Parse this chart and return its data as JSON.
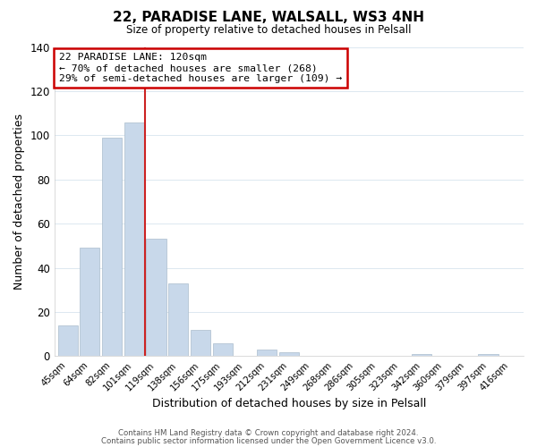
{
  "title": "22, PARADISE LANE, WALSALL, WS3 4NH",
  "subtitle": "Size of property relative to detached houses in Pelsall",
  "xlabel": "Distribution of detached houses by size in Pelsall",
  "ylabel": "Number of detached properties",
  "bar_labels": [
    "45sqm",
    "64sqm",
    "82sqm",
    "101sqm",
    "119sqm",
    "138sqm",
    "156sqm",
    "175sqm",
    "193sqm",
    "212sqm",
    "231sqm",
    "249sqm",
    "268sqm",
    "286sqm",
    "305sqm",
    "323sqm",
    "342sqm",
    "360sqm",
    "379sqm",
    "397sqm",
    "416sqm"
  ],
  "bar_values": [
    14,
    49,
    99,
    106,
    53,
    33,
    12,
    6,
    0,
    3,
    2,
    0,
    0,
    0,
    0,
    0,
    1,
    0,
    0,
    1,
    0
  ],
  "bar_color": "#c8d8ea",
  "bar_edge_color": "#aabdcc",
  "vline_index": 3.5,
  "vline_color": "#cc2222",
  "ylim": [
    0,
    140
  ],
  "yticks": [
    0,
    20,
    40,
    60,
    80,
    100,
    120,
    140
  ],
  "annotation_title": "22 PARADISE LANE: 120sqm",
  "annotation_line1": "← 70% of detached houses are smaller (268)",
  "annotation_line2": "29% of semi-detached houses are larger (109) →",
  "annotation_box_color": "#ffffff",
  "annotation_box_edge": "#cc0000",
  "footer_line1": "Contains HM Land Registry data © Crown copyright and database right 2024.",
  "footer_line2": "Contains public sector information licensed under the Open Government Licence v3.0.",
  "bg_color": "#ffffff",
  "grid_color": "#dce8f0"
}
